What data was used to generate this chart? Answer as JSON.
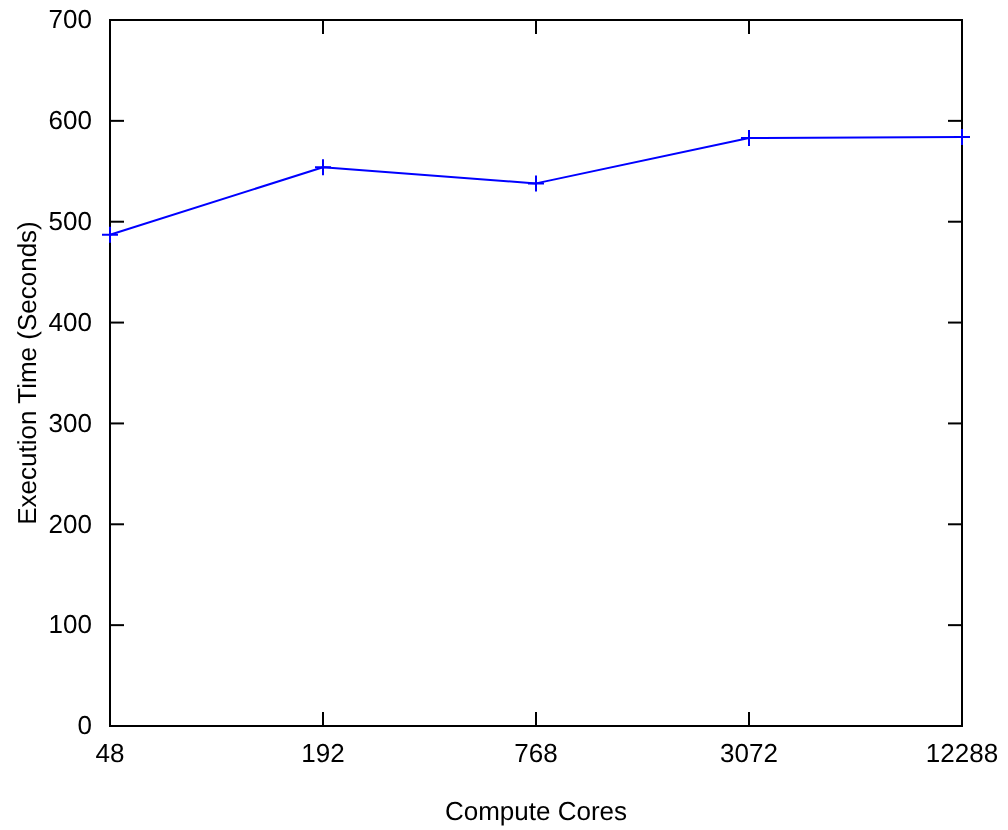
{
  "chart_data": {
    "type": "line",
    "xlabel": "Compute Cores",
    "ylabel": "Execution Time (Seconds)",
    "x": [
      48,
      192,
      768,
      3072,
      12288
    ],
    "series": [
      {
        "color": "#0000ff",
        "values": [
          487,
          554,
          538,
          583,
          584
        ]
      }
    ],
    "log": "x",
    "xlim": [
      48,
      12288
    ],
    "xticks": [
      48,
      192,
      768,
      3072,
      12288
    ],
    "ylim": [
      0,
      700
    ],
    "yticks": [
      0,
      100,
      200,
      300,
      400,
      500,
      600,
      700
    ],
    "marker": "cross",
    "line_style": "solid",
    "grid": false
  }
}
